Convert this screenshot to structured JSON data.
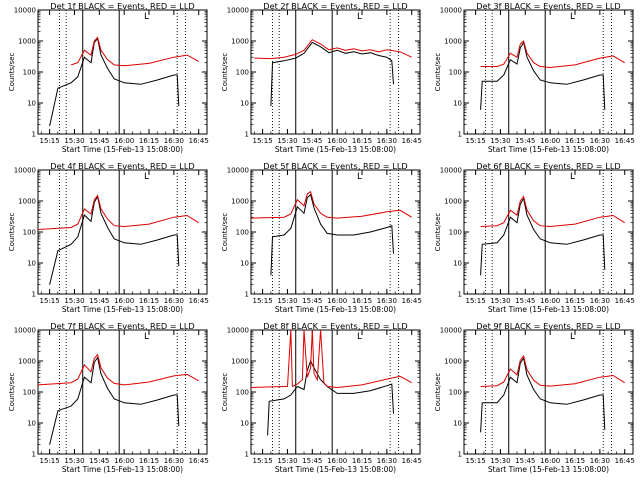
{
  "figure_date": "15-Feb-13",
  "colors": {
    "events": "#000000",
    "lld": "#dd0000",
    "axis": "#000000"
  },
  "chart_data": [
    {
      "type": "line",
      "title": "Det 1f BLACK = Events, RED = LLD",
      "xlabel": "Start Time (15-Feb-13 15:08:00)",
      "ylabel": "Counts/sec",
      "yscale": "log",
      "ylim": [
        1,
        10000
      ],
      "xlim": [
        "15:08",
        "16:50"
      ],
      "xticks": [
        "15:15",
        "15:30",
        "15:45",
        "16:00",
        "16:15",
        "16:30",
        "16:45"
      ],
      "yticks": [
        "1",
        "10",
        "100",
        "1000",
        "10000"
      ],
      "grid": false,
      "legend": "none",
      "annotations": [
        "L"
      ],
      "series": [
        {
          "name": "Events",
          "color": "#000000",
          "x": [
            "15:15",
            "15:20",
            "15:28",
            "15:32",
            "15:36",
            "15:40",
            "15:42",
            "15:44",
            "15:46",
            "15:50",
            "15:54",
            "16:00",
            "16:10",
            "16:20",
            "16:30",
            "16:32",
            "16:33"
          ],
          "y": [
            1.8,
            30,
            45,
            70,
            300,
            200,
            900,
            1200,
            350,
            130,
            60,
            45,
            40,
            55,
            80,
            80,
            8
          ]
        },
        {
          "name": "LLD",
          "color": "#dd0000",
          "x": [
            "15:28",
            "15:32",
            "15:36",
            "15:40",
            "15:42",
            "15:44",
            "15:46",
            "15:50",
            "15:54",
            "16:00",
            "16:15",
            "16:30",
            "16:38",
            "16:45"
          ],
          "y": [
            170,
            200,
            500,
            350,
            1000,
            1300,
            500,
            250,
            170,
            160,
            190,
            300,
            350,
            220
          ]
        }
      ]
    },
    {
      "type": "line",
      "title": "Det 2f BLACK = Events, RED = LLD",
      "xlabel": "Start Time (15-Feb-13 15:08:00)",
      "ylabel": "Counts/sec",
      "yscale": "log",
      "ylim": [
        1,
        10000
      ],
      "xlim": [
        "15:08",
        "16:50"
      ],
      "xticks": [
        "15:15",
        "15:30",
        "15:45",
        "16:00",
        "16:15",
        "16:30",
        "16:45"
      ],
      "yticks": [
        "1",
        "10",
        "100",
        "1000",
        "10000"
      ],
      "grid": false,
      "legend": "none",
      "annotations": [
        "L"
      ],
      "series": [
        {
          "name": "Events",
          "color": "#000000",
          "x": [
            "15:20",
            "15:21",
            "15:28",
            "15:35",
            "15:40",
            "15:45",
            "15:50",
            "15:55",
            "16:00",
            "16:05",
            "16:10",
            "16:15",
            "16:20",
            "16:25",
            "16:30",
            "16:33",
            "16:34"
          ],
          "y": [
            8,
            200,
            230,
            280,
            400,
            900,
            650,
            420,
            500,
            400,
            450,
            380,
            420,
            340,
            300,
            230,
            40
          ]
        },
        {
          "name": "LLD",
          "color": "#dd0000",
          "x": [
            "15:10",
            "15:20",
            "15:28",
            "15:35",
            "15:40",
            "15:45",
            "15:50",
            "15:55",
            "16:00",
            "16:05",
            "16:10",
            "16:15",
            "16:20",
            "16:25",
            "16:30",
            "16:38",
            "16:45"
          ],
          "y": [
            280,
            270,
            300,
            370,
            500,
            1100,
            800,
            520,
            600,
            500,
            560,
            480,
            520,
            450,
            520,
            450,
            300
          ]
        }
      ]
    },
    {
      "type": "line",
      "title": "Det 3f BLACK = Events, RED = LLD",
      "xlabel": "Start Time (15-Feb-13 15:08:00)",
      "ylabel": "Counts/sec",
      "yscale": "log",
      "ylim": [
        1,
        10000
      ],
      "xlim": [
        "15:08",
        "16:50"
      ],
      "xticks": [
        "15:15",
        "15:30",
        "15:45",
        "16:00",
        "16:15",
        "16:30",
        "16:45"
      ],
      "yticks": [
        "1",
        "10",
        "100",
        "1000",
        "10000"
      ],
      "grid": false,
      "legend": "none",
      "annotations": [
        "L"
      ],
      "series": [
        {
          "name": "Events",
          "color": "#000000",
          "x": [
            "15:18",
            "15:19",
            "15:28",
            "15:32",
            "15:36",
            "15:40",
            "15:42",
            "15:44",
            "15:46",
            "15:50",
            "15:54",
            "16:00",
            "16:10",
            "16:20",
            "16:30",
            "16:32",
            "16:33"
          ],
          "y": [
            6,
            50,
            50,
            80,
            250,
            180,
            600,
            900,
            300,
            110,
            55,
            45,
            40,
            55,
            80,
            80,
            6
          ]
        },
        {
          "name": "LLD",
          "color": "#dd0000",
          "x": [
            "15:18",
            "15:28",
            "15:32",
            "15:36",
            "15:40",
            "15:42",
            "15:44",
            "15:46",
            "15:50",
            "15:54",
            "16:00",
            "16:15",
            "16:30",
            "16:38",
            "16:45"
          ],
          "y": [
            150,
            150,
            180,
            400,
            300,
            800,
            1000,
            400,
            200,
            150,
            140,
            170,
            280,
            330,
            200
          ]
        }
      ]
    },
    {
      "type": "line",
      "title": "Det 4f BLACK = Events, RED = LLD",
      "xlabel": "Start Time (15-Feb-13 15:08:00)",
      "ylabel": "Counts/sec",
      "yscale": "log",
      "ylim": [
        1,
        10000
      ],
      "xlim": [
        "15:08",
        "16:50"
      ],
      "xticks": [
        "15:15",
        "15:30",
        "15:45",
        "16:00",
        "16:15",
        "16:30",
        "16:45"
      ],
      "yticks": [
        "1",
        "10",
        "100",
        "1000",
        "10000"
      ],
      "grid": false,
      "legend": "none",
      "annotations": [
        "L"
      ],
      "series": [
        {
          "name": "Events",
          "color": "#000000",
          "x": [
            "15:15",
            "15:20",
            "15:28",
            "15:32",
            "15:36",
            "15:40",
            "15:42",
            "15:44",
            "15:46",
            "15:50",
            "15:54",
            "16:00",
            "16:10",
            "16:20",
            "16:30",
            "16:32",
            "16:33"
          ],
          "y": [
            2,
            25,
            40,
            70,
            350,
            220,
            900,
            1400,
            400,
            140,
            60,
            45,
            40,
            55,
            80,
            80,
            8
          ]
        },
        {
          "name": "LLD",
          "color": "#dd0000",
          "x": [
            "15:08",
            "15:28",
            "15:32",
            "15:36",
            "15:40",
            "15:42",
            "15:44",
            "15:46",
            "15:50",
            "15:54",
            "16:00",
            "16:15",
            "16:30",
            "16:38",
            "16:45"
          ],
          "y": [
            120,
            140,
            180,
            550,
            380,
            1100,
            1500,
            550,
            260,
            160,
            150,
            180,
            300,
            340,
            200
          ]
        }
      ]
    },
    {
      "type": "line",
      "title": "Det 5f BLACK = Events, RED = LLD",
      "xlabel": "Start Time (15-Feb-13 15:08:00)",
      "ylabel": "Counts/sec",
      "yscale": "log",
      "ylim": [
        1,
        10000
      ],
      "xlim": [
        "15:08",
        "16:50"
      ],
      "xticks": [
        "15:15",
        "15:30",
        "15:45",
        "16:00",
        "16:15",
        "16:30",
        "16:45"
      ],
      "yticks": [
        "1",
        "10",
        "100",
        "1000",
        "10000"
      ],
      "grid": false,
      "legend": "none",
      "annotations": [
        "L"
      ],
      "series": [
        {
          "name": "Events",
          "color": "#000000",
          "x": [
            "15:20",
            "15:21",
            "15:28",
            "15:32",
            "15:36",
            "15:40",
            "15:42",
            "15:44",
            "15:46",
            "15:50",
            "15:54",
            "16:00",
            "16:10",
            "16:20",
            "16:30",
            "16:33",
            "16:34"
          ],
          "y": [
            4,
            70,
            80,
            130,
            650,
            400,
            1300,
            1600,
            600,
            180,
            90,
            80,
            80,
            100,
            140,
            160,
            20
          ]
        },
        {
          "name": "LLD",
          "color": "#dd0000",
          "x": [
            "15:08",
            "15:28",
            "15:32",
            "15:36",
            "15:40",
            "15:42",
            "15:44",
            "15:46",
            "15:50",
            "15:54",
            "16:00",
            "16:15",
            "16:30",
            "16:38",
            "16:45"
          ],
          "y": [
            280,
            300,
            380,
            1100,
            700,
            1700,
            2000,
            800,
            400,
            300,
            280,
            320,
            450,
            500,
            300
          ]
        }
      ]
    },
    {
      "type": "line",
      "title": "Det 6f BLACK = Events, RED = LLD",
      "xlabel": "Start Time (15-Feb-13 15:08:00)",
      "ylabel": "Counts/sec",
      "yscale": "log",
      "ylim": [
        1,
        10000
      ],
      "xlim": [
        "15:08",
        "16:50"
      ],
      "xticks": [
        "15:15",
        "15:30",
        "15:45",
        "16:00",
        "16:15",
        "16:30",
        "16:45"
      ],
      "yticks": [
        "1",
        "10",
        "100",
        "1000",
        "10000"
      ],
      "grid": false,
      "legend": "none",
      "annotations": [
        "L"
      ],
      "series": [
        {
          "name": "Events",
          "color": "#000000",
          "x": [
            "15:18",
            "15:19",
            "15:28",
            "15:32",
            "15:36",
            "15:40",
            "15:42",
            "15:44",
            "15:46",
            "15:50",
            "15:54",
            "16:00",
            "16:10",
            "16:20",
            "16:30",
            "16:32",
            "16:33"
          ],
          "y": [
            4,
            40,
            45,
            80,
            300,
            200,
            800,
            1200,
            350,
            120,
            60,
            45,
            40,
            55,
            80,
            80,
            6
          ]
        },
        {
          "name": "LLD",
          "color": "#dd0000",
          "x": [
            "15:18",
            "15:28",
            "15:32",
            "15:36",
            "15:40",
            "15:42",
            "15:44",
            "15:46",
            "15:50",
            "15:54",
            "16:00",
            "16:15",
            "16:30",
            "16:38",
            "16:45"
          ],
          "y": [
            150,
            160,
            200,
            500,
            350,
            1000,
            1400,
            500,
            230,
            160,
            150,
            180,
            300,
            340,
            200
          ]
        }
      ]
    },
    {
      "type": "line",
      "title": "Det 7f BLACK = Events, RED = LLD",
      "xlabel": "Start Time (15-Feb-13 15:08:00)",
      "ylabel": "Counts/sec",
      "yscale": "log",
      "ylim": [
        1,
        10000
      ],
      "xlim": [
        "15:08",
        "16:50"
      ],
      "xticks": [
        "15:15",
        "15:30",
        "15:45",
        "16:00",
        "16:15",
        "16:30",
        "16:45"
      ],
      "yticks": [
        "1",
        "10",
        "100",
        "1000",
        "10000"
      ],
      "grid": false,
      "legend": "none",
      "annotations": [
        "L"
      ],
      "series": [
        {
          "name": "Events",
          "color": "#000000",
          "x": [
            "15:15",
            "15:20",
            "15:28",
            "15:32",
            "15:36",
            "15:40",
            "15:42",
            "15:44",
            "15:46",
            "15:50",
            "15:54",
            "16:00",
            "16:10",
            "16:20",
            "16:30",
            "16:32",
            "16:33"
          ],
          "y": [
            2,
            25,
            35,
            60,
            300,
            200,
            900,
            1300,
            380,
            130,
            60,
            45,
            40,
            55,
            80,
            80,
            8
          ]
        },
        {
          "name": "LLD",
          "color": "#dd0000",
          "x": [
            "15:08",
            "15:28",
            "15:32",
            "15:36",
            "15:40",
            "15:42",
            "15:44",
            "15:46",
            "15:50",
            "15:54",
            "16:00",
            "16:15",
            "16:30",
            "16:38",
            "16:45"
          ],
          "y": [
            170,
            200,
            260,
            750,
            450,
            1200,
            1600,
            600,
            280,
            190,
            170,
            210,
            330,
            370,
            230
          ]
        }
      ]
    },
    {
      "type": "line",
      "title": "Det 8f BLACK = Events, RED = LLD",
      "xlabel": "Start Time (15-Feb-13 15:08:00)",
      "ylabel": "Counts/sec",
      "yscale": "log",
      "ylim": [
        1,
        10000
      ],
      "xlim": [
        "15:08",
        "16:50"
      ],
      "xticks": [
        "15:15",
        "15:30",
        "15:45",
        "16:00",
        "16:15",
        "16:30",
        "16:45"
      ],
      "yticks": [
        "1",
        "10",
        "100",
        "1000",
        "10000"
      ],
      "grid": false,
      "legend": "none",
      "annotations": [
        "L"
      ],
      "series": [
        {
          "name": "Events",
          "color": "#000000",
          "x": [
            "15:18",
            "15:19",
            "15:28",
            "15:32",
            "15:36",
            "15:40",
            "15:42",
            "15:44",
            "15:46",
            "15:50",
            "15:54",
            "16:00",
            "16:10",
            "16:20",
            "16:30",
            "16:33",
            "16:34"
          ],
          "y": [
            4,
            50,
            60,
            80,
            150,
            120,
            500,
            1000,
            600,
            250,
            150,
            90,
            90,
            110,
            160,
            180,
            20
          ]
        },
        {
          "name": "LLD",
          "color": "#dd0000",
          "x": [
            "15:08",
            "15:28",
            "15:30",
            "15:32",
            "15:33",
            "15:36",
            "15:39",
            "15:40",
            "15:42",
            "15:44",
            "15:45",
            "15:46",
            "15:48",
            "15:50",
            "15:52",
            "15:54",
            "16:00",
            "16:15",
            "16:30",
            "16:38",
            "16:45"
          ],
          "y": [
            140,
            150,
            150,
            10000,
            150,
            180,
            250,
            10000,
            300,
            600,
            10000,
            400,
            250,
            10000,
            200,
            150,
            140,
            170,
            260,
            320,
            200
          ]
        }
      ]
    },
    {
      "type": "line",
      "title": "Det 9f BLACK = Events, RED = LLD",
      "xlabel": "Start Time (15-Feb-13 15:08:00)",
      "ylabel": "Counts/sec",
      "yscale": "log",
      "ylim": [
        1,
        10000
      ],
      "xlim": [
        "15:08",
        "16:50"
      ],
      "xticks": [
        "15:15",
        "15:30",
        "15:45",
        "16:00",
        "16:15",
        "16:30",
        "16:45"
      ],
      "yticks": [
        "1",
        "10",
        "100",
        "1000",
        "10000"
      ],
      "grid": false,
      "legend": "none",
      "annotations": [
        "L"
      ],
      "series": [
        {
          "name": "Events",
          "color": "#000000",
          "x": [
            "15:18",
            "15:19",
            "15:28",
            "15:32",
            "15:36",
            "15:40",
            "15:42",
            "15:44",
            "15:46",
            "15:50",
            "15:54",
            "16:00",
            "16:10",
            "16:20",
            "16:30",
            "16:32",
            "16:33"
          ],
          "y": [
            5,
            45,
            45,
            80,
            300,
            200,
            850,
            1250,
            350,
            120,
            60,
            45,
            40,
            55,
            80,
            80,
            6
          ]
        },
        {
          "name": "LLD",
          "color": "#dd0000",
          "x": [
            "15:18",
            "15:28",
            "15:32",
            "15:36",
            "15:40",
            "15:42",
            "15:44",
            "15:46",
            "15:50",
            "15:54",
            "16:00",
            "16:15",
            "16:30",
            "16:38",
            "16:45"
          ],
          "y": [
            150,
            160,
            210,
            550,
            360,
            1050,
            1450,
            520,
            240,
            165,
            155,
            185,
            300,
            340,
            200
          ]
        }
      ]
    }
  ]
}
